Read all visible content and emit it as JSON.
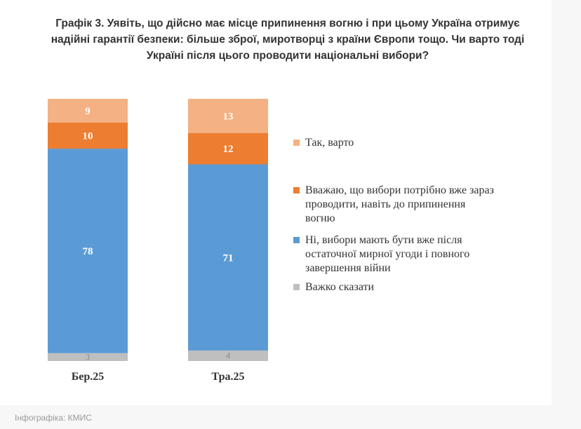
{
  "title_lines": [
    "Графік 3. Уявіть, що дійсно має місце припинення вогню і при цьому Україна отримує",
    "надійні гарантії безпеки: більше зброї, миротворці з країни Європи тощо. Чи варто тоді",
    "Україні після цього проводити національні вибори?"
  ],
  "caption": "Інфографіка: КМИС",
  "chart_data": {
    "type": "bar",
    "stacked": true,
    "categories": [
      "Бер.25",
      "Тра.25"
    ],
    "ylim": [
      0,
      100
    ],
    "grid": false,
    "legend_position": "right",
    "series": [
      {
        "name": "Важко сказати",
        "values": [
          3,
          4
        ],
        "color": "#bfbfbf",
        "label_color": "#8c8c8c"
      },
      {
        "name": "Ні, вибори мають бути вже після остаточної мирної угоди і повного завершення війни",
        "values": [
          78,
          71
        ],
        "color": "#5b9bd5",
        "label_color": "#ffffff"
      },
      {
        "name": "Вважаю, що вибори потрібно вже зараз проводити, навіть до припинення вогню",
        "values": [
          10,
          12
        ],
        "color": "#ed7d31",
        "label_color": "#ffffff"
      },
      {
        "name": "Так, варто",
        "values": [
          9,
          13
        ],
        "color": "#f4b183",
        "label_color": "#ffffff"
      }
    ]
  },
  "legend": [
    {
      "lines": [
        "Так, варто"
      ],
      "color": "#f4b183"
    },
    {
      "lines": [
        "Вважаю, що вибори потрібно вже зараз",
        "проводити, навіть до припинення",
        "вогню"
      ],
      "color": "#ed7d31"
    },
    {
      "lines": [
        "Ні, вибори мають бути вже після",
        "остаточної мирної угоди і повного",
        "завершення війни"
      ],
      "color": "#5b9bd5"
    },
    {
      "lines": [
        "Важко сказати"
      ],
      "color": "#bfbfbf"
    }
  ]
}
